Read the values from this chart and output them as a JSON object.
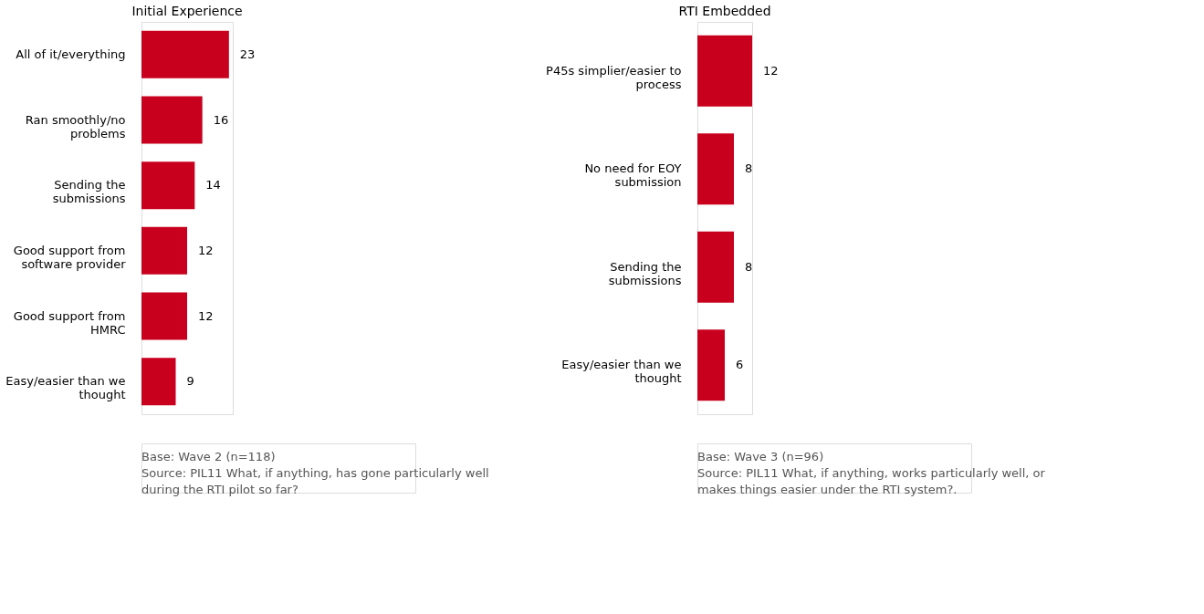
{
  "chart_data": [
    {
      "type": "bar",
      "orientation": "horizontal",
      "title": "Initial Experience",
      "color": "#c8001e",
      "data_labels": true,
      "categories": [
        "All of it/everything",
        "Ran smoothly/no\nproblems",
        "Sending the\nsubmissions",
        "Good support from\nsoftware provider",
        "Good support from\nHMRC",
        "Easy/easier than we\nthought"
      ],
      "values": [
        23,
        16,
        14,
        12,
        12,
        9
      ],
      "annotations": [
        "Base: Wave 2 (n=118)",
        "Source: PIL11 What, if anything, has gone particularly well during the RTI pilot so far?"
      ]
    },
    {
      "type": "bar",
      "orientation": "horizontal",
      "title": "RTI Embedded",
      "color": "#c8001e",
      "data_labels": true,
      "categories": [
        "P45s simplier/easier to\nprocess",
        "No need for EOY\nsubmission",
        "Sending the\nsubmissions",
        "Easy/easier than we\nthought"
      ],
      "values": [
        12,
        8,
        8,
        6
      ],
      "annotations": [
        "Base: Wave 3 (n=96)",
        "Source: PIL11 What, if anything, works particularly well, or makes things easier under the RTI system?."
      ]
    }
  ]
}
